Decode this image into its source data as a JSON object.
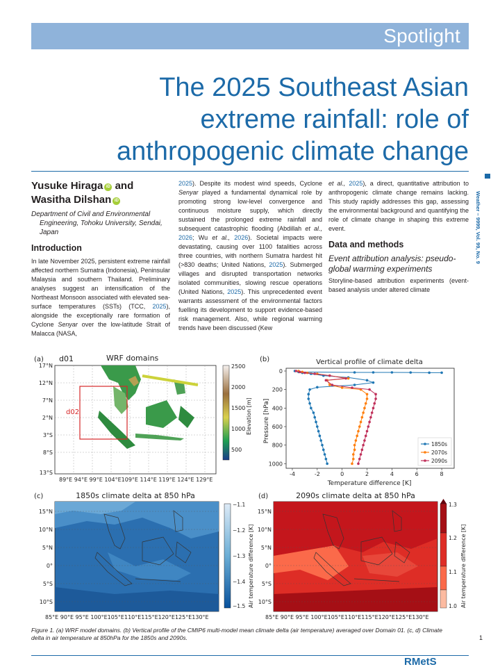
{
  "banner": {
    "label": "Spotlight"
  },
  "article": {
    "title": [
      "The 2025 Southeast Asian",
      "extreme rainfall: role of",
      "anthropogenic climate change"
    ],
    "authors": [
      "Yusuke Hiraga",
      "and",
      "Wasitha Dilshan"
    ],
    "orcid_label": "iD",
    "affiliation": "Department of Civil and Environmental Engineering, Tohoku University, Sendai, Japan",
    "side_text": "Weather – 9999, Vol. 99, No. 9"
  },
  "body": {
    "intro_heading": "Introduction",
    "intro_p1_a": "In late November 2025, persistent extreme rainfall affected northern Sumatra (Indonesia), Peninsular Malaysia and southern Thailand. Preliminary analyses suggest an intensification of the Northeast Monsoon associated with elevated sea-surface temperatures (SSTs) (TCC, ",
    "intro_p1_cite1": "2025",
    "intro_p1_b": "), alongside the exceptionally rare formation of Cyclone ",
    "intro_p1_italic": "Senyar",
    "intro_p1_c": " over the low-latitude Strait of Malacca (NASA, ",
    "intro_p1_cite2": "2025",
    "intro_p1_d": "). Despite its modest wind speeds, Cyclone ",
    "intro_p1_italic2": "Senyar",
    "intro_p1_e": " played a fundamental dynamical role by promoting strong low-level convergence and continuous moisture supply, which directly sustained the prolonged extreme rainfall and subsequent catastrophic flooding (Abdillah ",
    "intro_p1_etal1": "et al.,",
    "intro_p1_cite3": "2026",
    "intro_p1_f": "; Wu ",
    "intro_p1_etal2": "et al.,",
    "intro_p1_cite4": "2026",
    "intro_p1_g": "). Societal impacts were devastating, causing over 1100 fatalities across three countries, with northern Sumatra hardest hit (>830 deaths; United Nations, ",
    "intro_p1_cite5": "2025",
    "intro_p1_h": "). Submerged villages and disrupted transportation networks isolated communities, slowing rescue operations (United Nations, ",
    "intro_p1_cite6": "2025",
    "intro_p1_i": "). This unprecedented event warrants assessment of the environmental factors fuelling its development to support evidence-based risk management. Also, while regional warming trends have been discussed (Kew ",
    "intro_p1_etal3": "et al.,",
    "intro_p1_cite7": "2025",
    "intro_p1_j": "), a direct, quantitative attribution to anthropogenic climate change remains lacking. This study rapidly addresses this gap, assessing the environmental background and quantifying the role of climate change in shaping this extreme event.",
    "methods_heading": "Data and methods",
    "methods_subheading": "Event attribution analysis: pseudo-global warming experiments",
    "methods_p1": "Storyline-based attribution experiments (event-based analysis under altered climate"
  },
  "figure": {
    "panel_a": {
      "label": "(a)",
      "domain_label": "d01",
      "title": "WRF domains",
      "inner_label": "d02",
      "lat_ticks": [
        "17°N",
        "12°N",
        "7°N",
        "2°N",
        "3°S",
        "8°S",
        "13°S"
      ],
      "lon_ticks": "89°E 94°E 99°E 104°E109°E 114°E 119°E 124°E 129°E",
      "cbar_ticks": [
        "2500",
        "2000",
        "1500",
        "1000",
        "500"
      ],
      "cbar_label": "Elevation [m]"
    },
    "panel_c": {
      "label": "(c)",
      "title": "1850s climate delta at 850 hPa",
      "lat_ticks": [
        "15°N",
        "10°N",
        "5°N",
        "0°",
        "5°S",
        "10°S"
      ],
      "lon_ticks": "85°E 90°E 95°E 100°E105°E110°E115°E120°E125°E130°E",
      "cbar_ticks": [
        "−1.1",
        "−1.2",
        "−1.3",
        "−1.4",
        "−1.5"
      ],
      "cbar_label": "Air temperature difference [K]"
    },
    "panel_d": {
      "label": "(d)",
      "title": "2090s climate delta at 850 hPa",
      "lat_ticks": [
        "15°N",
        "10°N",
        "5°N",
        "0°",
        "5°S",
        "10°S"
      ],
      "lon_ticks": "85°E 90°E 95°E 100°E105°E110°E115°E120°E125°E130°E",
      "cbar_ticks": [
        "1.3",
        "1.2",
        "1.1",
        "1.0"
      ],
      "cbar_label": "Air temperature difference [K]",
      "colors": {
        "dark": "#a50f15",
        "mid": "#de2d26",
        "light": "#fb6a4a"
      }
    },
    "caption": "Figure 1. (a) WRF model domains. (b) Vertical profile of the CMIP6 multi-model mean climate delta (air temperature) averaged over Domain 01. (c, d) Climate delta in air temperature at 850hPa for the 1850s and 2090s."
  },
  "chart_data": {
    "type": "line",
    "label": "(b)",
    "title": "Vertical profile of climate delta",
    "xlabel": "Temperature difference [K]",
    "ylabel": "Pressure [hPa]",
    "xlim": [
      -4.5,
      9
    ],
    "ylim": [
      1050,
      -30
    ],
    "x_ticks": [
      -4,
      -2,
      0,
      2,
      4,
      6,
      8
    ],
    "y_ticks": [
      0,
      200,
      400,
      600,
      800,
      1000
    ],
    "legend_position": "lower-right",
    "series": [
      {
        "name": "1850s",
        "color": "#1f77b4",
        "points": [
          [
            -3.8,
            0
          ],
          [
            -3.5,
            10
          ],
          [
            -3.2,
            20
          ],
          [
            -2.5,
            30
          ],
          [
            -1.5,
            50
          ],
          [
            0.5,
            70
          ],
          [
            2,
            100
          ],
          [
            2.5,
            125
          ],
          [
            1,
            150
          ],
          [
            -2,
            175
          ],
          [
            -2.6,
            200
          ],
          [
            -2.7,
            250
          ],
          [
            -2.7,
            300
          ],
          [
            -2.6,
            350
          ],
          [
            -2.5,
            400
          ],
          [
            -2.3,
            450
          ],
          [
            -2.2,
            500
          ],
          [
            -2.1,
            550
          ],
          [
            -2,
            600
          ],
          [
            -1.9,
            650
          ],
          [
            -1.8,
            700
          ],
          [
            -1.7,
            750
          ],
          [
            -1.6,
            800
          ],
          [
            -1.5,
            850
          ],
          [
            -1.4,
            900
          ],
          [
            -1.3,
            950
          ],
          [
            -1.2,
            1000
          ]
        ],
        "extra": [
          [
            1,
            15
          ],
          [
            2.5,
            15
          ],
          [
            4,
            15
          ],
          [
            5.5,
            16
          ],
          [
            7,
            18
          ],
          [
            8,
            18
          ]
        ]
      },
      {
        "name": "2070s",
        "color": "#ff7f0e",
        "points": [
          [
            -3.5,
            0
          ],
          [
            -3.2,
            10
          ],
          [
            -2.8,
            20
          ],
          [
            -2,
            30
          ],
          [
            -1,
            50
          ],
          [
            0.5,
            80
          ],
          [
            -1.2,
            100
          ],
          [
            -1,
            150
          ],
          [
            0,
            180
          ],
          [
            1.5,
            200
          ],
          [
            2,
            250
          ],
          [
            2,
            300
          ],
          [
            1.9,
            350
          ],
          [
            1.8,
            400
          ],
          [
            1.7,
            450
          ],
          [
            1.6,
            500
          ],
          [
            1.5,
            550
          ],
          [
            1.4,
            600
          ],
          [
            1.3,
            650
          ],
          [
            1.2,
            700
          ],
          [
            1.1,
            750
          ],
          [
            1,
            800
          ],
          [
            1,
            850
          ],
          [
            0.9,
            900
          ],
          [
            0.9,
            950
          ],
          [
            0.8,
            1000
          ]
        ]
      },
      {
        "name": "2090s",
        "color": "#c0305a",
        "points": [
          [
            -3.7,
            0
          ],
          [
            -3.4,
            10
          ],
          [
            -3,
            20
          ],
          [
            -2.2,
            30
          ],
          [
            -1,
            50
          ],
          [
            0.3,
            80
          ],
          [
            -1.3,
            100
          ],
          [
            -0.8,
            150
          ],
          [
            0.8,
            180
          ],
          [
            2.2,
            200
          ],
          [
            2.7,
            250
          ],
          [
            2.7,
            300
          ],
          [
            2.6,
            350
          ],
          [
            2.5,
            400
          ],
          [
            2.4,
            450
          ],
          [
            2.3,
            500
          ],
          [
            2.2,
            550
          ],
          [
            2.1,
            600
          ],
          [
            2,
            650
          ],
          [
            1.9,
            700
          ],
          [
            1.8,
            750
          ],
          [
            1.7,
            800
          ],
          [
            1.6,
            850
          ],
          [
            1.5,
            900
          ],
          [
            1.4,
            950
          ],
          [
            1.3,
            1000
          ]
        ]
      }
    ]
  },
  "footer": {
    "page_number": "1",
    "logo": "RMetS"
  }
}
